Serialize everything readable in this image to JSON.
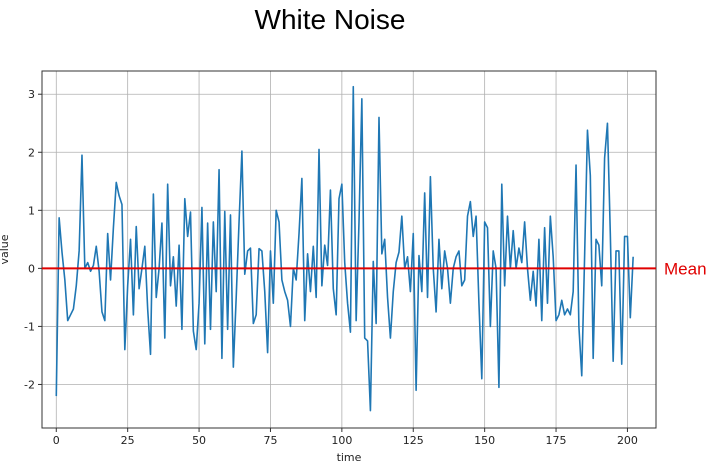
{
  "chart_data": {
    "type": "line",
    "title": "White Noise",
    "xlabel": "time",
    "ylabel": "value",
    "xlim": [
      -5,
      210
    ],
    "ylim": [
      -2.75,
      3.4
    ],
    "xticks": [
      0,
      25,
      50,
      75,
      100,
      125,
      150,
      175,
      200
    ],
    "yticks": [
      -2,
      -1,
      0,
      1,
      2,
      3
    ],
    "grid": true,
    "series": [
      {
        "name": "",
        "color": "#1f77b4",
        "x_start": 0,
        "x_step": 1,
        "values": [
          -2.2,
          0.87,
          0.28,
          -0.2,
          -0.9,
          -0.8,
          -0.7,
          -0.3,
          0.3,
          1.95,
          0.0,
          0.1,
          -0.05,
          0.05,
          0.38,
          -0.05,
          -0.75,
          -0.9,
          0.6,
          -0.2,
          0.7,
          1.48,
          1.25,
          1.1,
          -1.4,
          -0.3,
          0.5,
          -0.8,
          0.72,
          -0.35,
          0.0,
          0.38,
          -0.7,
          -1.48,
          1.28,
          -0.5,
          0.0,
          0.78,
          -1.2,
          1.45,
          -0.3,
          0.2,
          -0.65,
          0.4,
          -1.05,
          1.2,
          0.55,
          0.97,
          -1.08,
          -1.4,
          -0.6,
          1.05,
          -1.3,
          0.78,
          -1.05,
          0.8,
          -0.4,
          1.7,
          -1.55,
          0.98,
          -1.05,
          0.92,
          -1.7,
          -0.5,
          0.8,
          2.02,
          -0.1,
          0.3,
          0.35,
          -0.95,
          -0.8,
          0.34,
          0.3,
          -0.4,
          -1.45,
          0.3,
          -0.6,
          1.0,
          0.8,
          -0.2,
          -0.4,
          -0.55,
          -1.0,
          0.0,
          -0.2,
          0.6,
          1.55,
          -0.9,
          0.25,
          -0.4,
          0.38,
          -0.5,
          2.05,
          -0.3,
          0.4,
          0.05,
          1.35,
          -0.35,
          -0.8,
          1.2,
          1.45,
          0.1,
          -0.6,
          -1.1,
          3.13,
          -0.9,
          0.8,
          2.92,
          -1.2,
          -1.25,
          -2.45,
          0.12,
          -0.95,
          2.6,
          0.25,
          0.5,
          -0.5,
          -1.2,
          -0.4,
          0.1,
          0.28,
          0.9,
          0.0,
          0.2,
          -0.4,
          0.6,
          -2.1,
          0.22,
          -0.4,
          1.3,
          -0.5,
          1.58,
          0.0,
          -0.75,
          0.5,
          -0.35,
          0.3,
          0.0,
          -0.6,
          0.0,
          0.2,
          0.3,
          -0.3,
          -0.2,
          0.9,
          1.15,
          0.55,
          0.9,
          -0.6,
          -1.9,
          0.8,
          0.7,
          -1.0,
          0.3,
          0.0,
          -2.05,
          1.45,
          -0.3,
          0.9,
          0.0,
          0.65,
          0.0,
          0.35,
          0.1,
          0.8,
          0.0,
          -0.55,
          -0.05,
          -0.65,
          0.5,
          -0.9,
          0.7,
          -0.6,
          0.9,
          0.2,
          -0.9,
          -0.8,
          -0.55,
          -0.8,
          -0.7,
          -0.8,
          -0.4,
          1.78,
          -1.0,
          -1.85,
          0.2,
          2.38,
          1.6,
          -1.55,
          0.5,
          0.4,
          -0.3,
          1.9,
          2.5,
          0.6,
          -1.6,
          0.3,
          0.3,
          -1.65,
          0.55,
          0.55,
          -0.85,
          0.2
        ]
      }
    ],
    "annotations": [
      {
        "type": "hline",
        "y": 0,
        "color": "#e00000",
        "label": "Mean"
      }
    ]
  }
}
